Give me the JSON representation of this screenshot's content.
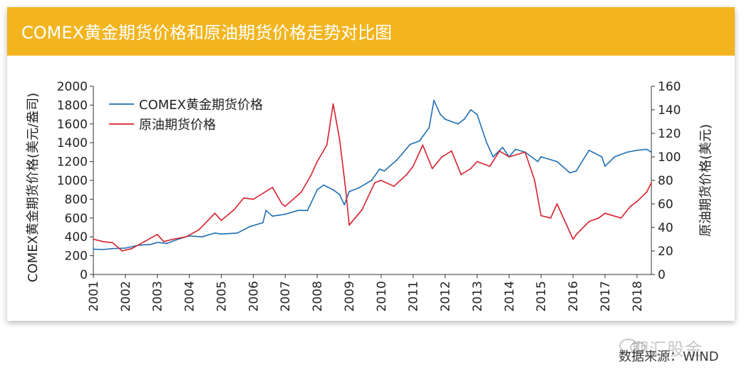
{
  "header": {
    "title": "COMEX黄金期货价格和原油期货价格走势对比图"
  },
  "source_text": "数据来源：WIND",
  "watermark": {
    "text": "期汇股金"
  },
  "colors": {
    "banner": "#f3b51f",
    "gold_series": "#1f6fb4",
    "oil_series": "#d7202d"
  },
  "chart_data": {
    "type": "line",
    "title": "COMEX黄金期货价格和原油期货价格走势对比图",
    "xlabel": "",
    "ylabel": "COMEX黄金期货价格(美元/盎司)",
    "y2label": "原油期货价格(美元)",
    "xlim": [
      2001,
      2018.45
    ],
    "ylim": [
      0,
      2000
    ],
    "y2lim": [
      0,
      160
    ],
    "xticks": [
      "2001",
      "2002",
      "2003",
      "2004",
      "2005",
      "2006",
      "2007",
      "2008",
      "2009",
      "2010",
      "2011",
      "2012",
      "2013",
      "2014",
      "2015",
      "2016",
      "2017",
      "2018"
    ],
    "yticks": [
      "0",
      "200",
      "400",
      "600",
      "800",
      "1000",
      "1200",
      "1400",
      "1600",
      "1800",
      "2000"
    ],
    "y2ticks": [
      "0",
      "20",
      "40",
      "60",
      "80",
      "100",
      "120",
      "140",
      "160"
    ],
    "legend_position": "top-left",
    "series": [
      {
        "name": "COMEX黄金期货价格",
        "axis": "left",
        "x": [
          2001.0,
          2001.3,
          2001.6,
          2002.0,
          2002.4,
          2002.8,
          2003.0,
          2003.3,
          2003.7,
          2004.0,
          2004.4,
          2004.8,
          2005.0,
          2005.5,
          2005.9,
          2006.3,
          2006.4,
          2006.6,
          2006.8,
          2007.0,
          2007.4,
          2007.7,
          2008.0,
          2008.2,
          2008.5,
          2008.7,
          2008.85,
          2009.0,
          2009.3,
          2009.7,
          2009.95,
          2010.1,
          2010.5,
          2010.9,
          2011.2,
          2011.5,
          2011.65,
          2011.85,
          2012.0,
          2012.4,
          2012.6,
          2012.8,
          2013.0,
          2013.3,
          2013.5,
          2013.8,
          2014.0,
          2014.2,
          2014.5,
          2014.9,
          2015.0,
          2015.5,
          2015.9,
          2016.1,
          2016.5,
          2016.9,
          2017.0,
          2017.3,
          2017.7,
          2018.0,
          2018.3,
          2018.45
        ],
        "values": [
          270,
          265,
          275,
          280,
          310,
          320,
          340,
          330,
          380,
          410,
          400,
          440,
          430,
          440,
          510,
          550,
          680,
          620,
          630,
          640,
          680,
          680,
          900,
          950,
          900,
          850,
          740,
          880,
          920,
          1000,
          1120,
          1100,
          1220,
          1380,
          1420,
          1560,
          1850,
          1700,
          1650,
          1600,
          1650,
          1750,
          1700,
          1400,
          1250,
          1350,
          1250,
          1330,
          1300,
          1200,
          1250,
          1200,
          1080,
          1100,
          1320,
          1250,
          1150,
          1250,
          1300,
          1320,
          1330,
          1300
        ]
      },
      {
        "name": "原油期货价格",
        "axis": "right",
        "x": [
          2001.0,
          2001.3,
          2001.6,
          2001.9,
          2002.2,
          2002.6,
          2003.0,
          2003.2,
          2003.5,
          2003.9,
          2004.3,
          2004.8,
          2005.0,
          2005.4,
          2005.7,
          2006.0,
          2006.6,
          2006.9,
          2007.0,
          2007.5,
          2007.8,
          2008.0,
          2008.3,
          2008.5,
          2008.7,
          2008.9,
          2009.0,
          2009.4,
          2009.8,
          2010.0,
          2010.4,
          2010.8,
          2011.0,
          2011.3,
          2011.6,
          2011.9,
          2012.2,
          2012.5,
          2012.8,
          2013.0,
          2013.4,
          2013.7,
          2014.0,
          2014.5,
          2014.8,
          2015.0,
          2015.3,
          2015.5,
          2015.8,
          2016.0,
          2016.1,
          2016.5,
          2016.8,
          2017.0,
          2017.5,
          2017.8,
          2018.0,
          2018.3,
          2018.45
        ],
        "values": [
          30,
          28,
          27,
          20,
          22,
          28,
          34,
          28,
          30,
          32,
          38,
          52,
          46,
          55,
          65,
          64,
          74,
          60,
          58,
          70,
          84,
          96,
          110,
          145,
          115,
          70,
          42,
          55,
          78,
          80,
          75,
          85,
          92,
          110,
          90,
          100,
          105,
          85,
          90,
          96,
          92,
          105,
          100,
          104,
          80,
          50,
          48,
          60,
          42,
          30,
          34,
          45,
          48,
          52,
          48,
          58,
          62,
          70,
          78
        ]
      }
    ]
  }
}
